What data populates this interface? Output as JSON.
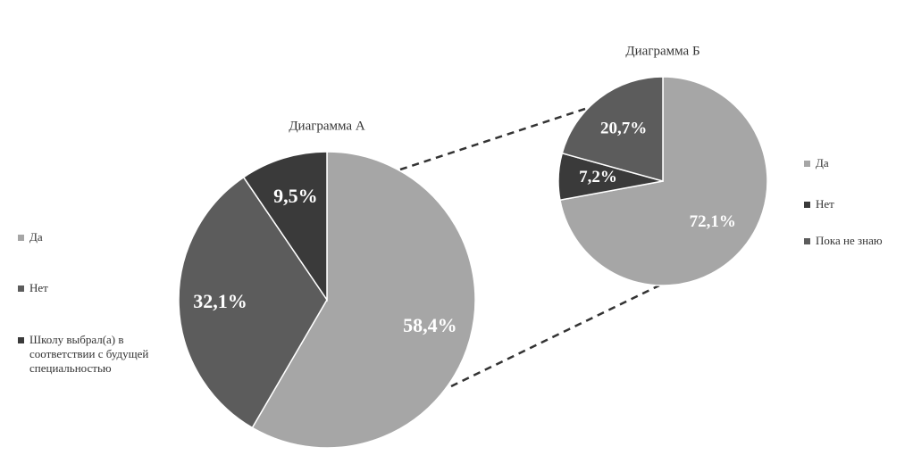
{
  "chart_data": [
    {
      "type": "pie",
      "title": "Диаграмма А",
      "categories": [
        "Да",
        "Нет",
        "Школу выбрал(а) в соответствии с будущей специальностью"
      ],
      "values": [
        58.4,
        32.1,
        9.5
      ],
      "value_labels": [
        "58,4%",
        "32,1%",
        "9,5%"
      ],
      "colors": [
        "#a6a6a6",
        "#5c5c5c",
        "#3a3a3a"
      ]
    },
    {
      "type": "pie",
      "title": "Диаграмма Б",
      "categories": [
        "Да",
        "Нет",
        "Пока не знаю"
      ],
      "values": [
        72.1,
        7.2,
        20.7
      ],
      "value_labels": [
        "72,1%",
        "7,2%",
        "20,7%"
      ],
      "colors": [
        "#a6a6a6",
        "#3a3a3a",
        "#5c5c5c"
      ]
    }
  ]
}
